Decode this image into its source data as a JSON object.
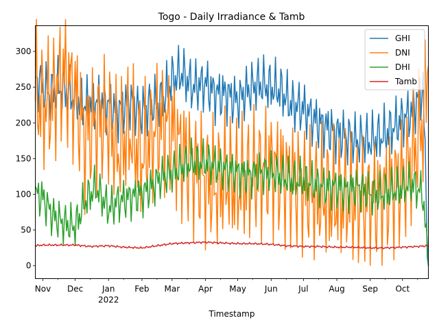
{
  "chart_data": {
    "type": "line",
    "title": "Togo - Daily Irradiance & Tamb",
    "xlabel": "Timestamp",
    "ylabel": "",
    "x_start": "2021-10-25",
    "x_end": "2022-10-25",
    "ylim": [
      -18,
      336
    ],
    "yticks": [
      0,
      50,
      100,
      150,
      200,
      250,
      300
    ],
    "xticks": [
      {
        "date": "2021-11-01",
        "label": "Nov",
        "sublabel": ""
      },
      {
        "date": "2021-12-01",
        "label": "Dec",
        "sublabel": ""
      },
      {
        "date": "2022-01-01",
        "label": "Jan",
        "sublabel": "2022"
      },
      {
        "date": "2022-02-01",
        "label": "Feb",
        "sublabel": ""
      },
      {
        "date": "2022-03-01",
        "label": "Mar",
        "sublabel": ""
      },
      {
        "date": "2022-04-01",
        "label": "Apr",
        "sublabel": ""
      },
      {
        "date": "2022-05-01",
        "label": "May",
        "sublabel": ""
      },
      {
        "date": "2022-06-01",
        "label": "Jun",
        "sublabel": ""
      },
      {
        "date": "2022-07-01",
        "label": "Jul",
        "sublabel": ""
      },
      {
        "date": "2022-08-01",
        "label": "Aug",
        "sublabel": ""
      },
      {
        "date": "2022-09-01",
        "label": "Sep",
        "sublabel": ""
      },
      {
        "date": "2022-10-01",
        "label": "Oct",
        "sublabel": ""
      }
    ],
    "legend_position": "top-right",
    "grid": false,
    "series": [
      {
        "name": "GHI",
        "color": "#1f77b4",
        "points": [
          [
            "2021-10-25",
            262
          ],
          [
            "2021-11-01",
            250
          ],
          [
            "2021-11-08",
            240
          ],
          [
            "2021-11-15",
            252
          ],
          [
            "2021-11-22",
            245
          ],
          [
            "2021-12-01",
            235
          ],
          [
            "2021-12-10",
            225
          ],
          [
            "2021-12-20",
            230
          ],
          [
            "2022-01-01",
            225
          ],
          [
            "2022-01-10",
            215
          ],
          [
            "2022-01-20",
            230
          ],
          [
            "2022-02-01",
            215
          ],
          [
            "2022-02-10",
            225
          ],
          [
            "2022-02-20",
            230
          ],
          [
            "2022-03-01",
            260
          ],
          [
            "2022-03-10",
            270
          ],
          [
            "2022-03-20",
            250
          ],
          [
            "2022-04-01",
            255
          ],
          [
            "2022-04-10",
            240
          ],
          [
            "2022-04-20",
            240
          ],
          [
            "2022-05-01",
            230
          ],
          [
            "2022-05-10",
            245
          ],
          [
            "2022-05-20",
            255
          ],
          [
            "2022-06-01",
            250
          ],
          [
            "2022-06-10",
            245
          ],
          [
            "2022-06-20",
            225
          ],
          [
            "2022-07-01",
            220
          ],
          [
            "2022-07-10",
            205
          ],
          [
            "2022-07-20",
            195
          ],
          [
            "2022-08-01",
            185
          ],
          [
            "2022-08-10",
            180
          ],
          [
            "2022-08-20",
            175
          ],
          [
            "2022-09-01",
            175
          ],
          [
            "2022-09-10",
            180
          ],
          [
            "2022-09-20",
            190
          ],
          [
            "2022-10-01",
            205
          ],
          [
            "2022-10-10",
            215
          ],
          [
            "2022-10-20",
            250
          ],
          [
            "2022-10-25",
            0
          ]
        ]
      },
      {
        "name": "DNI",
        "color": "#ff7f0e",
        "points": [
          [
            "2021-10-25",
            240
          ],
          [
            "2021-11-01",
            220
          ],
          [
            "2021-11-10",
            230
          ],
          [
            "2021-11-20",
            270
          ],
          [
            "2021-12-01",
            240
          ],
          [
            "2021-12-10",
            180
          ],
          [
            "2021-12-20",
            200
          ],
          [
            "2022-01-01",
            200
          ],
          [
            "2022-01-10",
            160
          ],
          [
            "2022-01-20",
            190
          ],
          [
            "2022-02-01",
            150
          ],
          [
            "2022-02-10",
            180
          ],
          [
            "2022-02-20",
            200
          ],
          [
            "2022-03-01",
            190
          ],
          [
            "2022-03-10",
            160
          ],
          [
            "2022-03-20",
            140
          ],
          [
            "2022-04-01",
            120
          ],
          [
            "2022-04-10",
            110
          ],
          [
            "2022-04-20",
            120
          ],
          [
            "2022-05-01",
            110
          ],
          [
            "2022-05-10",
            120
          ],
          [
            "2022-05-20",
            130
          ],
          [
            "2022-06-01",
            140
          ],
          [
            "2022-06-10",
            130
          ],
          [
            "2022-06-20",
            120
          ],
          [
            "2022-07-01",
            110
          ],
          [
            "2022-07-10",
            100
          ],
          [
            "2022-07-20",
            95
          ],
          [
            "2022-08-01",
            90
          ],
          [
            "2022-08-10",
            95
          ],
          [
            "2022-08-20",
            90
          ],
          [
            "2022-09-01",
            90
          ],
          [
            "2022-09-10",
            95
          ],
          [
            "2022-09-20",
            110
          ],
          [
            "2022-10-01",
            120
          ],
          [
            "2022-10-10",
            150
          ],
          [
            "2022-10-20",
            200
          ],
          [
            "2022-10-25",
            280
          ]
        ]
      },
      {
        "name": "DHI",
        "color": "#2ca02c",
        "points": [
          [
            "2021-10-25",
            100
          ],
          [
            "2021-11-01",
            95
          ],
          [
            "2021-11-10",
            70
          ],
          [
            "2021-11-20",
            60
          ],
          [
            "2021-12-01",
            55
          ],
          [
            "2021-12-10",
            90
          ],
          [
            "2021-12-20",
            110
          ],
          [
            "2022-01-01",
            80
          ],
          [
            "2022-01-10",
            90
          ],
          [
            "2022-01-20",
            95
          ],
          [
            "2022-02-01",
            100
          ],
          [
            "2022-02-10",
            110
          ],
          [
            "2022-02-20",
            125
          ],
          [
            "2022-03-01",
            130
          ],
          [
            "2022-03-10",
            140
          ],
          [
            "2022-03-20",
            145
          ],
          [
            "2022-04-01",
            145
          ],
          [
            "2022-04-10",
            140
          ],
          [
            "2022-04-20",
            135
          ],
          [
            "2022-05-01",
            130
          ],
          [
            "2022-05-10",
            125
          ],
          [
            "2022-05-20",
            130
          ],
          [
            "2022-06-01",
            130
          ],
          [
            "2022-06-10",
            125
          ],
          [
            "2022-06-20",
            120
          ],
          [
            "2022-07-01",
            120
          ],
          [
            "2022-07-10",
            115
          ],
          [
            "2022-07-20",
            110
          ],
          [
            "2022-08-01",
            110
          ],
          [
            "2022-08-10",
            105
          ],
          [
            "2022-08-20",
            110
          ],
          [
            "2022-09-01",
            100
          ],
          [
            "2022-09-10",
            100
          ],
          [
            "2022-09-20",
            105
          ],
          [
            "2022-10-01",
            110
          ],
          [
            "2022-10-10",
            115
          ],
          [
            "2022-10-20",
            100
          ],
          [
            "2022-10-25",
            0
          ]
        ]
      },
      {
        "name": "Tamb",
        "color": "#d62728",
        "points": [
          [
            "2021-10-25",
            28
          ],
          [
            "2021-11-01",
            29
          ],
          [
            "2021-11-15",
            29
          ],
          [
            "2021-12-01",
            29
          ],
          [
            "2021-12-15",
            27
          ],
          [
            "2022-01-01",
            28
          ],
          [
            "2022-01-15",
            26
          ],
          [
            "2022-02-01",
            25
          ],
          [
            "2022-02-15",
            28
          ],
          [
            "2022-03-01",
            31
          ],
          [
            "2022-03-15",
            32
          ],
          [
            "2022-04-01",
            33
          ],
          [
            "2022-04-15",
            32
          ],
          [
            "2022-05-01",
            31
          ],
          [
            "2022-05-15",
            31
          ],
          [
            "2022-06-01",
            30
          ],
          [
            "2022-06-15",
            28
          ],
          [
            "2022-07-01",
            27
          ],
          [
            "2022-07-15",
            27
          ],
          [
            "2022-08-01",
            26
          ],
          [
            "2022-08-15",
            26
          ],
          [
            "2022-09-01",
            25
          ],
          [
            "2022-09-15",
            25
          ],
          [
            "2022-10-01",
            26
          ],
          [
            "2022-10-15",
            27
          ],
          [
            "2022-10-25",
            28
          ]
        ]
      }
    ]
  }
}
